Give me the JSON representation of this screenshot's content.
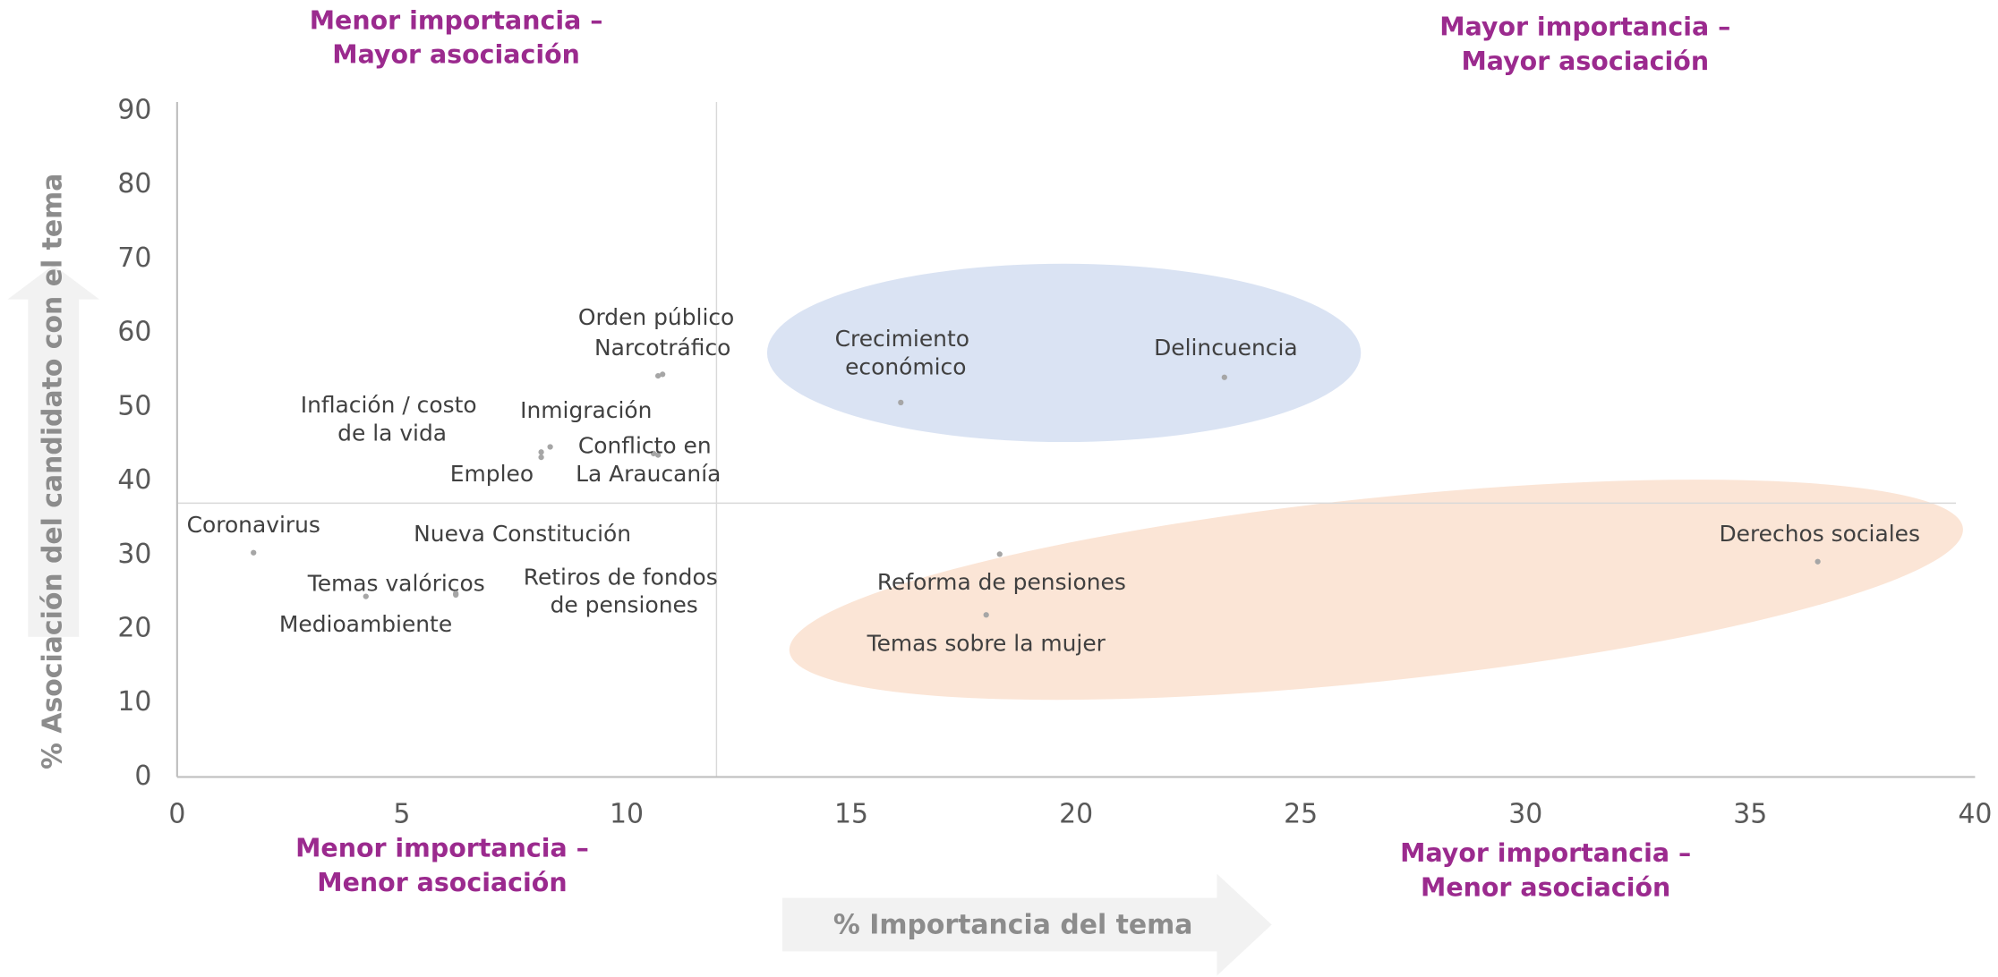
{
  "chart_data": {
    "type": "scatter",
    "x_label": "% Importancia del tema",
    "y_label": "% Asociación del candidato con el tema",
    "quadrant_labels": {
      "top_left": [
        "Menor importancia –",
        "Mayor asociación"
      ],
      "top_right": [
        "Mayor importancia –",
        "Mayor asociación"
      ],
      "bottom_left": [
        "Menor importancia –",
        "Menor asociación"
      ],
      "bottom_right": [
        "Mayor importancia –",
        "Menor asociación"
      ]
    },
    "labels": [
      "Coronavirus",
      "Medioambiente",
      "Temas valóricos",
      "Nueva Constitución",
      "Retiros de fondos de pensiones",
      "Empleo",
      "Inflación / costo de la vida",
      "Inmigración",
      "Conflicto en La Araucanía",
      "Orden público",
      "Narcotráfico",
      "Crecimiento económico",
      "Delincuencia",
      "Reforma de pensiones",
      "Temas sobre la mujer",
      "Derechos sociales"
    ],
    "x": [
      1.7,
      4.2,
      6.2,
      6.2,
      10.7,
      8.1,
      8.1,
      8.3,
      10.6,
      10.8,
      10.7,
      16.1,
      23.3,
      18.3,
      18.0,
      36.5
    ],
    "values": [
      30.3,
      24.4,
      24.6,
      24.8,
      43.5,
      43.2,
      43.9,
      44.6,
      43.7,
      54.4,
      54.2,
      50.6,
      54.0,
      30.1,
      21.9,
      29.1
    ],
    "color": "#a6a6a6",
    "xlim": [
      0,
      40
    ],
    "xticks": [
      0,
      5,
      10,
      15,
      20,
      25,
      30,
      35,
      40
    ],
    "ylim": [
      0,
      90
    ],
    "yticks": [
      0,
      10,
      20,
      30,
      40,
      50,
      60,
      70,
      80,
      90
    ],
    "reference_x": 12,
    "reference_y": 37
  }
}
